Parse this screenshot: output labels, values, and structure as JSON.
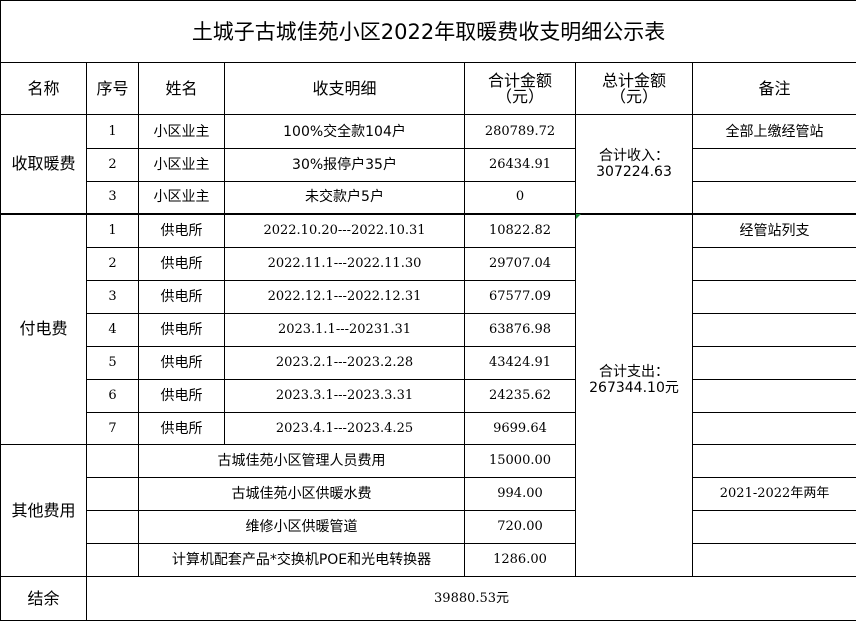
{
  "title": "土城子古城佳苑小区2022年取暖费收支明细公示表",
  "headers": {
    "name": "名称",
    "seq": "序号",
    "person": "姓名",
    "detail": "收支明细",
    "amount": "合计金额（元）",
    "total": "总计金额（元）",
    "note": "备注"
  },
  "heating_income": {
    "category": "收取暖费",
    "rows": [
      {
        "seq": "1",
        "person": "小区业主",
        "detail": "100%交全款104户",
        "amount": "280789.72",
        "note": "全部上缴经管站"
      },
      {
        "seq": "2",
        "person": "小区业主",
        "detail": "30%报停户35户",
        "amount": "26434.91",
        "note": ""
      },
      {
        "seq": "3",
        "person": "小区业主",
        "detail": "未交款户5户",
        "amount": "0",
        "note": ""
      }
    ],
    "total": "合计收入：307224.63"
  },
  "electricity": {
    "category": "付电费",
    "rows": [
      {
        "seq": "1",
        "person": "供电所",
        "detail": "2022.10.20---2022.10.31",
        "amount": "10822.82",
        "note": "经管站列支"
      },
      {
        "seq": "2",
        "person": "供电所",
        "detail": "2022.11.1---2022.11.30",
        "amount": "29707.04",
        "note": ""
      },
      {
        "seq": "3",
        "person": "供电所",
        "detail": "2022.12.1---2022.12.31",
        "amount": "67577.09",
        "note": ""
      },
      {
        "seq": "4",
        "person": "供电所",
        "detail": "2023.1.1---20231.31",
        "amount": "63876.98",
        "note": ""
      },
      {
        "seq": "5",
        "person": "供电所",
        "detail": "2023.2.1---2023.2.28",
        "amount": "43424.91",
        "note": ""
      },
      {
        "seq": "6",
        "person": "供电所",
        "detail": "2023.3.1---2023.3.31",
        "amount": "24235.62",
        "note": ""
      },
      {
        "seq": "7",
        "person": "供电所",
        "detail": "2023.4.1---2023.4.25",
        "amount": "9699.64",
        "note": ""
      }
    ],
    "total": "合计支出：267344.10元"
  },
  "other": {
    "category": "其他费用",
    "rows": [
      {
        "detail": "古城佳苑小区管理人员费用",
        "amount": "15000.00",
        "note": ""
      },
      {
        "detail": "古城佳苑小区供暖水费",
        "amount": "994.00",
        "note": "2021-2022年两年"
      },
      {
        "detail": "维修小区供暖管道",
        "amount": "720.00",
        "note": ""
      },
      {
        "detail": "计算机配套产品*交换机POE和光电转换器",
        "amount": "1286.00",
        "note": ""
      }
    ]
  },
  "balance": {
    "label": "结余",
    "value": "39880.53元"
  }
}
